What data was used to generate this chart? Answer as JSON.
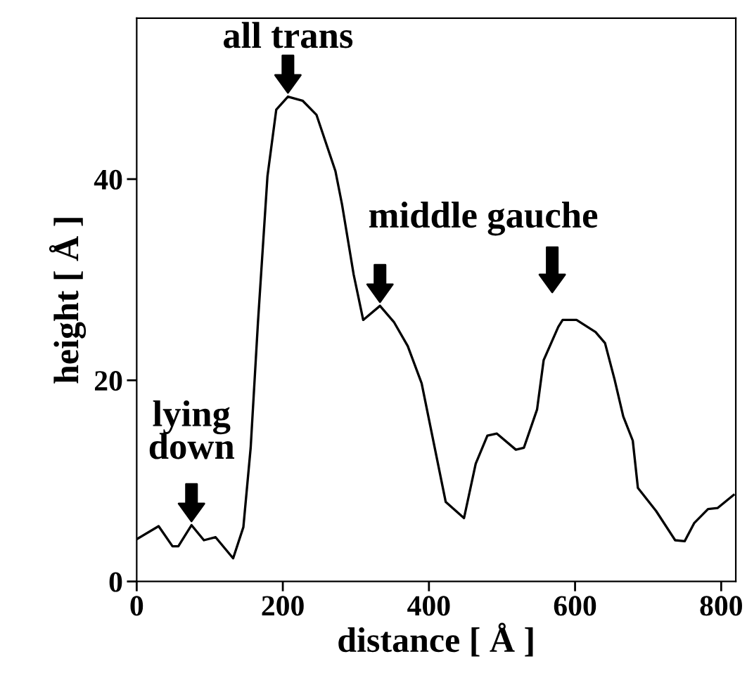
{
  "chart_data": {
    "type": "line",
    "xlabel": "distance [ Å ]",
    "ylabel": "height [ Å ]",
    "x": [
      0,
      30,
      49,
      57,
      75,
      92,
      108,
      132,
      146,
      156,
      166,
      179,
      191,
      207,
      227,
      246,
      272,
      281,
      297,
      310,
      333,
      352,
      371,
      390,
      423,
      448,
      464,
      480,
      493,
      519,
      530,
      548,
      557,
      577,
      583,
      602,
      628,
      641,
      654,
      666,
      679,
      686,
      711,
      737,
      750,
      763,
      782,
      795,
      817
    ],
    "values": [
      4.2,
      5.5,
      3.5,
      3.5,
      5.6,
      4.1,
      4.4,
      2.3,
      5.4,
      13.3,
      25.8,
      40.3,
      46.9,
      48.2,
      47.8,
      46.4,
      40.8,
      37.5,
      30.5,
      26.0,
      27.4,
      25.8,
      23.4,
      19.7,
      7.9,
      6.3,
      11.7,
      14.5,
      14.7,
      13.1,
      13.3,
      17.1,
      22.0,
      25.3,
      26.0,
      26.0,
      24.8,
      23.7,
      20.1,
      16.4,
      14.0,
      9.3,
      7.0,
      4.1,
      4.0,
      5.8,
      7.2,
      7.3,
      8.6
    ],
    "color": "#000000",
    "xlim": [
      0,
      820
    ],
    "ylim": [
      0,
      56
    ],
    "xticks": [
      0,
      200,
      400,
      600,
      800
    ],
    "yticks": [
      0,
      20,
      40
    ],
    "grid": false,
    "legend": false,
    "marker": "none",
    "line_style": "solid",
    "annotations": [
      {
        "text": "lying\ndown",
        "x": 75,
        "y": 5.6
      },
      {
        "text": "all trans",
        "x": 207,
        "y": 48.2
      },
      {
        "text": "middle gauche",
        "x": 333,
        "y": 27.4
      }
    ]
  }
}
